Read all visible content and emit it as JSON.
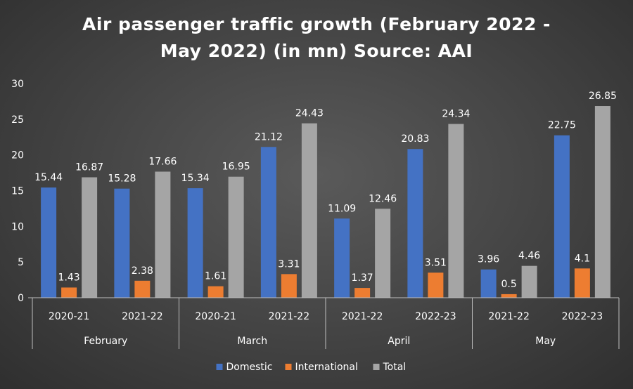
{
  "chart_data": {
    "type": "bar",
    "title_lines": [
      "Air passenger traffic growth (February 2022 -",
      "May 2022) (in mn) Source: AAI"
    ],
    "ylim": [
      0,
      30
    ],
    "yticks": [
      "0",
      "5",
      "10",
      "15",
      "20",
      "25",
      "30"
    ],
    "grid": false,
    "legend_position": "bottom",
    "groups": [
      {
        "label": "February",
        "categories": [
          "2020-21",
          "2021-22"
        ]
      },
      {
        "label": "March",
        "categories": [
          "2020-21",
          "2021-22"
        ]
      },
      {
        "label": "April",
        "categories": [
          "2021-22",
          "2022-23"
        ]
      },
      {
        "label": "May",
        "categories": [
          "2021-22",
          "2022-23"
        ]
      }
    ],
    "series": [
      {
        "name": "Domestic",
        "color": "#4472c4",
        "values": [
          15.44,
          15.28,
          15.34,
          21.12,
          11.09,
          20.83,
          3.96,
          22.75
        ],
        "labels": [
          "15.44",
          "15.28",
          "15.34",
          "21.12",
          "11.09",
          "20.83",
          "3.96",
          "22.75"
        ]
      },
      {
        "name": "International",
        "color": "#ed7d31",
        "values": [
          1.43,
          2.38,
          1.61,
          3.31,
          1.37,
          3.51,
          0.5,
          4.1
        ],
        "labels": [
          "1.43",
          "2.38",
          "1.61",
          "3.31",
          "1.37",
          "3.51",
          "0.5",
          "4.1"
        ]
      },
      {
        "name": "Total",
        "color": "#a5a5a5",
        "values": [
          16.87,
          17.66,
          16.95,
          24.43,
          12.46,
          24.34,
          4.46,
          26.85
        ],
        "labels": [
          "16.87",
          "17.66",
          "16.95",
          "24.43",
          "12.46",
          "24.34",
          "4.46",
          "26.85"
        ]
      }
    ]
  },
  "colors": {
    "text": "#ffffff",
    "axis_line": "#bfbfbf"
  }
}
